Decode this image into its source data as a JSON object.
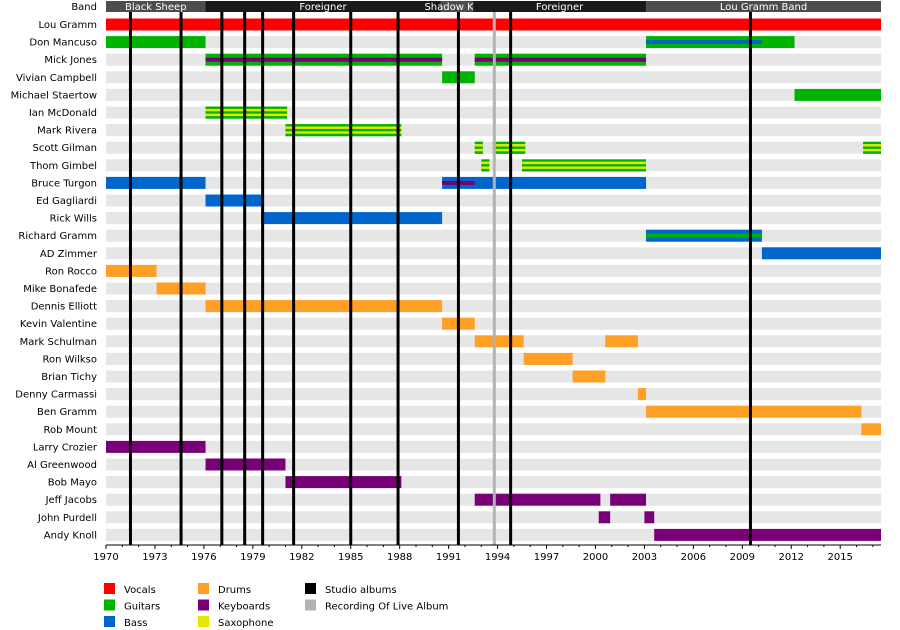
{
  "chart_data": {
    "type": "timeline",
    "header_label": "Band",
    "x_range": [
      1970,
      2017.5
    ],
    "x_ticks": [
      1970,
      1973,
      1976,
      1979,
      1982,
      1985,
      1988,
      1991,
      1994,
      1997,
      2000,
      2003,
      2006,
      2009,
      2012,
      2015
    ],
    "colors": {
      "Vocals": "#ff0000",
      "Guitars": "#00b300",
      "Bass": "#0066cc",
      "Drums": "#ff9f26",
      "Keyboards": "#770077",
      "Saxophone": "#e6e600",
      "Studio albums": "#000000",
      "Recording Of Live Album": "#b3b3b3",
      "band_dark": "#1a1a1a",
      "band_mid": "#4d4d4d",
      "stripe": "#e6e6e6"
    },
    "bands": [
      {
        "name": "Black Sheep",
        "start": 1970,
        "end": 1976.1,
        "shade": "band_mid"
      },
      {
        "name": "Foreigner",
        "start": 1976.1,
        "end": 1990.5,
        "shade": "band_dark"
      },
      {
        "name": "Shadow King",
        "start": 1990.5,
        "end": 1992.5,
        "shade": "band_mid"
      },
      {
        "name": "Foreigner",
        "start": 1992.5,
        "end": 2003.1,
        "shade": "band_dark"
      },
      {
        "name": "Lou Gramm Band",
        "start": 2003.1,
        "end": 2017.5,
        "shade": "band_mid"
      }
    ],
    "studio_albums": [
      1971.5,
      1974.6,
      1977.1,
      1978.5,
      1979.6,
      1981.5,
      1985.0,
      1987.9,
      1991.6,
      1994.8,
      2009.5
    ],
    "live_albums": [
      1993.8
    ],
    "members": [
      {
        "name": "Lou Gramm",
        "bars": [
          {
            "start": 1970,
            "end": 2017.5,
            "role": "Vocals"
          }
        ]
      },
      {
        "name": "Don Mancuso",
        "bars": [
          {
            "start": 1970,
            "end": 1976.1,
            "role": "Guitars"
          },
          {
            "start": 2003.1,
            "end": 2012.2,
            "role": "Guitars",
            "inner": "Bass",
            "inner_end": 2010.2
          }
        ]
      },
      {
        "name": "Mick Jones",
        "bars": [
          {
            "start": 1976.1,
            "end": 1990.6,
            "role": "Guitars",
            "inner": "Keyboards"
          },
          {
            "start": 1992.6,
            "end": 2003.1,
            "role": "Guitars",
            "inner": "Keyboards"
          }
        ]
      },
      {
        "name": "Vivian Campbell",
        "bars": [
          {
            "start": 1990.6,
            "end": 1992.6,
            "role": "Guitars"
          }
        ]
      },
      {
        "name": "Michael Staertow",
        "bars": [
          {
            "start": 2012.2,
            "end": 2017.5,
            "role": "Guitars"
          }
        ]
      },
      {
        "name": "Ian McDonald",
        "bars": [
          {
            "start": 1976.1,
            "end": 1981.1,
            "role": "Saxophone",
            "stripe": "Guitars"
          }
        ]
      },
      {
        "name": "Mark Rivera",
        "bars": [
          {
            "start": 1981.0,
            "end": 1988.1,
            "role": "Saxophone",
            "stripe": "Guitars"
          }
        ]
      },
      {
        "name": "Scott Gilman",
        "bars": [
          {
            "start": 1992.6,
            "end": 1993.1,
            "role": "Saxophone",
            "stripe": "Guitars"
          },
          {
            "start": 1993.7,
            "end": 1995.7,
            "role": "Saxophone",
            "stripe": "Guitars"
          },
          {
            "start": 2016.4,
            "end": 2017.5,
            "role": "Saxophone",
            "stripe": "Guitars"
          }
        ]
      },
      {
        "name": "Thom Gimbel",
        "bars": [
          {
            "start": 1993.0,
            "end": 1993.5,
            "role": "Saxophone",
            "stripe": "Guitars"
          },
          {
            "start": 1995.5,
            "end": 2003.1,
            "role": "Saxophone",
            "stripe": "Guitars"
          }
        ]
      },
      {
        "name": "Bruce Turgon",
        "bars": [
          {
            "start": 1970,
            "end": 1976.1,
            "role": "Bass"
          },
          {
            "start": 1990.6,
            "end": 2003.1,
            "role": "Bass",
            "inner": "Keyboards",
            "inner_end": 1992.6
          }
        ]
      },
      {
        "name": "Ed Gagliardi",
        "bars": [
          {
            "start": 1976.1,
            "end": 1979.5,
            "role": "Bass"
          }
        ]
      },
      {
        "name": "Rick Wills",
        "bars": [
          {
            "start": 1979.5,
            "end": 1990.6,
            "role": "Bass"
          }
        ]
      },
      {
        "name": "Richard Gramm",
        "bars": [
          {
            "start": 2003.1,
            "end": 2010.2,
            "role": "Bass",
            "inner": "Guitars"
          }
        ]
      },
      {
        "name": "AD Zimmer",
        "bars": [
          {
            "start": 2010.2,
            "end": 2017.5,
            "role": "Bass"
          }
        ]
      },
      {
        "name": "Ron Rocco",
        "bars": [
          {
            "start": 1970,
            "end": 1973.1,
            "role": "Drums"
          }
        ]
      },
      {
        "name": "Mike Bonafede",
        "bars": [
          {
            "start": 1973.1,
            "end": 1976.1,
            "role": "Drums"
          }
        ]
      },
      {
        "name": "Dennis Elliott",
        "bars": [
          {
            "start": 1976.1,
            "end": 1990.6,
            "role": "Drums"
          }
        ]
      },
      {
        "name": "Kevin Valentine",
        "bars": [
          {
            "start": 1990.6,
            "end": 1992.6,
            "role": "Drums"
          }
        ]
      },
      {
        "name": "Mark Schulman",
        "bars": [
          {
            "start": 1992.6,
            "end": 1995.6,
            "role": "Drums"
          },
          {
            "start": 2000.6,
            "end": 2002.6,
            "role": "Drums"
          }
        ]
      },
      {
        "name": "Ron Wilkso",
        "bars": [
          {
            "start": 1995.6,
            "end": 1998.6,
            "role": "Drums"
          }
        ]
      },
      {
        "name": "Brian Tichy",
        "bars": [
          {
            "start": 1998.6,
            "end": 2000.6,
            "role": "Drums"
          }
        ]
      },
      {
        "name": "Denny Carmassi",
        "bars": [
          {
            "start": 2002.6,
            "end": 2003.1,
            "role": "Drums"
          }
        ]
      },
      {
        "name": "Ben Gramm",
        "bars": [
          {
            "start": 2003.1,
            "end": 2016.3,
            "role": "Drums"
          }
        ]
      },
      {
        "name": "Rob Mount",
        "bars": [
          {
            "start": 2016.3,
            "end": 2017.5,
            "role": "Drums"
          }
        ]
      },
      {
        "name": "Larry Crozier",
        "bars": [
          {
            "start": 1970,
            "end": 1976.1,
            "role": "Keyboards"
          }
        ]
      },
      {
        "name": "Al Greenwood",
        "bars": [
          {
            "start": 1976.1,
            "end": 1981.0,
            "role": "Keyboards"
          }
        ]
      },
      {
        "name": "Bob Mayo",
        "bars": [
          {
            "start": 1981.0,
            "end": 1988.1,
            "role": "Keyboards"
          }
        ]
      },
      {
        "name": "Jeff Jacobs",
        "bars": [
          {
            "start": 1992.6,
            "end": 2000.3,
            "role": "Keyboards"
          },
          {
            "start": 2000.9,
            "end": 2003.1,
            "role": "Keyboards"
          }
        ]
      },
      {
        "name": "John Purdell",
        "bars": [
          {
            "start": 2000.2,
            "end": 2000.9,
            "role": "Keyboards"
          },
          {
            "start": 2003.0,
            "end": 2003.6,
            "role": "Keyboards"
          }
        ]
      },
      {
        "name": "Andy Knoll",
        "bars": [
          {
            "start": 2003.6,
            "end": 2017.5,
            "role": "Keyboards"
          }
        ]
      }
    ],
    "legend": [
      [
        "Vocals",
        "Guitars",
        "Bass"
      ],
      [
        "Drums",
        "Keyboards",
        "Saxophone"
      ],
      [
        "Studio albums",
        "Recording Of Live Album"
      ]
    ]
  }
}
